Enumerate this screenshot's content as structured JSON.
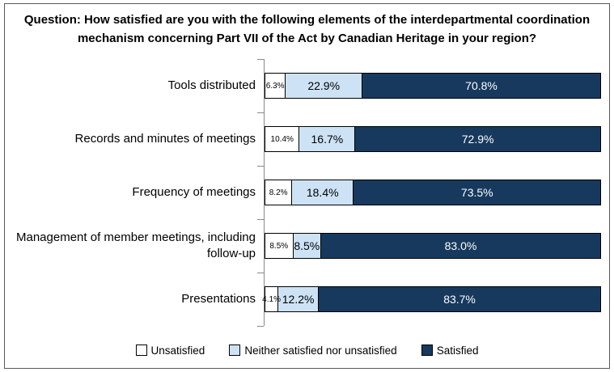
{
  "chart_data": {
    "type": "bar",
    "subtype": "horizontal-stacked-100",
    "title": "Question: How satisfied are you with the following elements of the interdepartmental coordination mechanism concerning Part VII of the Act by Canadian Heritage in your region?",
    "categories": [
      "Tools distributed",
      "Records and minutes of meetings",
      "Frequency of meetings",
      "Management of member meetings, including follow-up",
      "Presentations"
    ],
    "series": [
      {
        "name": "Unsatisfied",
        "color": "#FFFFFF",
        "text_color": "#000000",
        "values": [
          6.3,
          10.4,
          8.2,
          8.5,
          4.1
        ]
      },
      {
        "name": "Neither satisfied nor unsatisfied",
        "color": "#CDE3F5",
        "text_color": "#000000",
        "values": [
          22.9,
          16.7,
          18.4,
          8.5,
          12.2
        ]
      },
      {
        "name": "Satisfied",
        "color": "#17395E",
        "text_color": "#FFFFFF",
        "values": [
          70.8,
          72.9,
          73.5,
          83.0,
          83.7
        ]
      }
    ],
    "value_suffix": "%",
    "xlim": [
      0,
      100
    ],
    "grid": false,
    "legend_position": "bottom",
    "axis_color": "#898989",
    "bar_border_color": "#000000",
    "frame_border_color": "#595959"
  }
}
